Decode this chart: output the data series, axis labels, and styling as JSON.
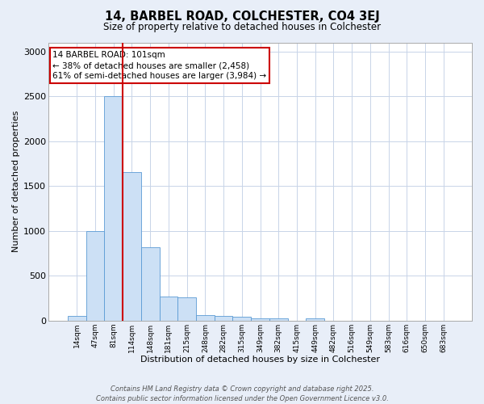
{
  "title_line1": "14, BARBEL ROAD, COLCHESTER, CO4 3EJ",
  "title_line2": "Size of property relative to detached houses in Colchester",
  "xlabel": "Distribution of detached houses by size in Colchester",
  "ylabel": "Number of detached properties",
  "bar_labels": [
    "14sqm",
    "47sqm",
    "81sqm",
    "114sqm",
    "148sqm",
    "181sqm",
    "215sqm",
    "248sqm",
    "282sqm",
    "315sqm",
    "349sqm",
    "382sqm",
    "415sqm",
    "449sqm",
    "482sqm",
    "516sqm",
    "549sqm",
    "583sqm",
    "616sqm",
    "650sqm",
    "683sqm"
  ],
  "bar_values": [
    50,
    1000,
    2500,
    1650,
    820,
    270,
    260,
    60,
    55,
    40,
    25,
    20,
    0,
    25,
    0,
    0,
    0,
    0,
    0,
    0,
    0
  ],
  "bar_color": "#cce0f5",
  "bar_edge_color": "#5b9bd5",
  "vline_x_index": 2,
  "vline_color": "#cc0000",
  "annotation_text": "14 BARBEL ROAD: 101sqm\n← 38% of detached houses are smaller (2,458)\n61% of semi-detached houses are larger (3,984) →",
  "annotation_box_color": "#ffffff",
  "annotation_box_edge": "#cc0000",
  "ylim": [
    0,
    3100
  ],
  "yticks": [
    0,
    500,
    1000,
    1500,
    2000,
    2500,
    3000
  ],
  "footnote1": "Contains HM Land Registry data © Crown copyright and database right 2025.",
  "footnote2": "Contains public sector information licensed under the Open Government Licence v3.0.",
  "bg_color": "#e8eef8",
  "plot_bg_color": "#ffffff",
  "grid_color": "#c8d4e8"
}
